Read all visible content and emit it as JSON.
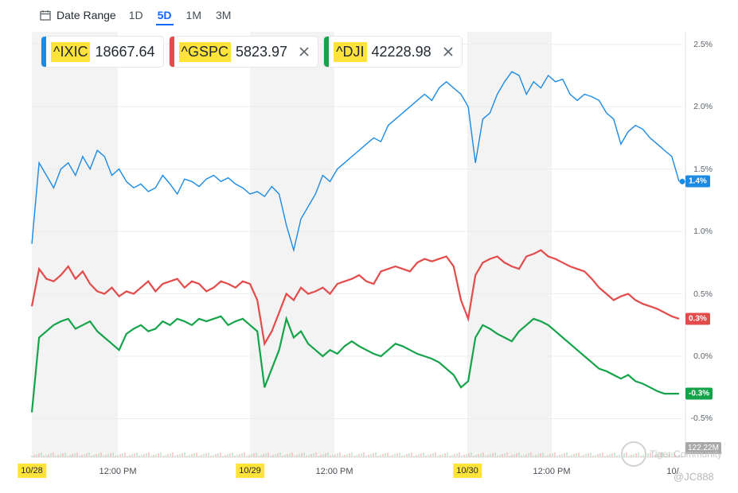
{
  "toolbar": {
    "date_range_label": "Date Range",
    "periods": [
      "1D",
      "5D",
      "1M",
      "3M"
    ],
    "active_period": "5D"
  },
  "legend": [
    {
      "symbol": "^IXIC",
      "price": "18667.64",
      "color": "#1a8ae5",
      "closable": false
    },
    {
      "symbol": "^GSPC",
      "price": "5823.97",
      "color": "#e34a4a",
      "closable": true
    },
    {
      "symbol": "^DJI",
      "price": "42228.98",
      "color": "#15a34a",
      "closable": true
    }
  ],
  "chart_data": {
    "type": "line",
    "x_labels": [
      "10/28",
      "12:00 PM",
      "10/29",
      "12:00 PM",
      "10/30",
      "12:00 PM",
      "10/"
    ],
    "highlighted_dates": [
      "10/28",
      "10/29",
      "10/30"
    ],
    "y_ticks": [
      "2.5%",
      "2.0%",
      "1.5%",
      "1.0%",
      "0.5%",
      "0.0%",
      "-0.5%"
    ],
    "ylim": [
      -0.5,
      2.5
    ],
    "y_unit": "%",
    "last_values": {
      "^IXIC": "1.4%",
      "^GSPC": "0.3%",
      "^DJI": "-0.3%"
    },
    "volume_label": "122.22M",
    "series": [
      {
        "name": "^IXIC",
        "color": "#1a8ae5",
        "values": [
          0.9,
          1.55,
          1.45,
          1.35,
          1.5,
          1.55,
          1.45,
          1.6,
          1.5,
          1.65,
          1.6,
          1.45,
          1.5,
          1.4,
          1.35,
          1.38,
          1.32,
          1.35,
          1.45,
          1.38,
          1.3,
          1.42,
          1.4,
          1.36,
          1.42,
          1.45,
          1.4,
          1.43,
          1.38,
          1.35,
          1.3,
          1.32,
          1.28,
          1.36,
          1.3,
          1.05,
          0.85,
          1.1,
          1.2,
          1.3,
          1.45,
          1.4,
          1.5,
          1.55,
          1.6,
          1.65,
          1.7,
          1.75,
          1.72,
          1.85,
          1.9,
          1.95,
          2.0,
          2.05,
          2.1,
          2.05,
          2.15,
          2.2,
          2.15,
          2.1,
          2.0,
          1.55,
          1.9,
          1.95,
          2.1,
          2.2,
          2.28,
          2.25,
          2.1,
          2.2,
          2.15,
          2.25,
          2.2,
          2.22,
          2.1,
          2.05,
          2.1,
          2.08,
          2.05,
          1.95,
          1.9,
          1.7,
          1.8,
          1.85,
          1.82,
          1.75,
          1.7,
          1.65,
          1.6,
          1.4
        ]
      },
      {
        "name": "^GSPC",
        "color": "#e34a4a",
        "values": [
          0.4,
          0.7,
          0.62,
          0.6,
          0.65,
          0.72,
          0.62,
          0.68,
          0.58,
          0.52,
          0.5,
          0.55,
          0.48,
          0.52,
          0.5,
          0.55,
          0.6,
          0.52,
          0.58,
          0.6,
          0.62,
          0.55,
          0.6,
          0.58,
          0.52,
          0.55,
          0.6,
          0.58,
          0.55,
          0.6,
          0.58,
          0.45,
          0.1,
          0.2,
          0.35,
          0.5,
          0.45,
          0.55,
          0.5,
          0.52,
          0.55,
          0.5,
          0.58,
          0.6,
          0.62,
          0.65,
          0.6,
          0.58,
          0.68,
          0.7,
          0.72,
          0.7,
          0.68,
          0.75,
          0.78,
          0.76,
          0.78,
          0.8,
          0.72,
          0.45,
          0.3,
          0.65,
          0.75,
          0.78,
          0.8,
          0.75,
          0.72,
          0.7,
          0.8,
          0.82,
          0.85,
          0.8,
          0.78,
          0.75,
          0.72,
          0.7,
          0.68,
          0.62,
          0.55,
          0.5,
          0.45,
          0.48,
          0.5,
          0.45,
          0.42,
          0.4,
          0.38,
          0.35,
          0.32,
          0.3
        ]
      },
      {
        "name": "^DJI",
        "color": "#15a34a",
        "values": [
          -0.45,
          0.15,
          0.2,
          0.25,
          0.28,
          0.3,
          0.22,
          0.25,
          0.28,
          0.2,
          0.15,
          0.1,
          0.05,
          0.18,
          0.22,
          0.25,
          0.2,
          0.22,
          0.28,
          0.25,
          0.3,
          0.28,
          0.25,
          0.3,
          0.28,
          0.3,
          0.32,
          0.25,
          0.28,
          0.3,
          0.25,
          0.2,
          -0.25,
          -0.1,
          0.05,
          0.3,
          0.15,
          0.2,
          0.1,
          0.05,
          0.0,
          0.05,
          0.02,
          0.08,
          0.12,
          0.08,
          0.05,
          0.02,
          0.0,
          0.05,
          0.1,
          0.08,
          0.05,
          0.02,
          0.0,
          -0.02,
          -0.05,
          -0.1,
          -0.15,
          -0.25,
          -0.2,
          0.15,
          0.25,
          0.22,
          0.18,
          0.15,
          0.12,
          0.2,
          0.25,
          0.3,
          0.28,
          0.25,
          0.2,
          0.15,
          0.1,
          0.05,
          0.0,
          -0.05,
          -0.1,
          -0.12,
          -0.15,
          -0.18,
          -0.15,
          -0.2,
          -0.22,
          -0.25,
          -0.28,
          -0.3,
          -0.3,
          -0.3
        ]
      }
    ]
  },
  "watermark": {
    "text": "Tiger Community",
    "handle": "@JC888"
  }
}
